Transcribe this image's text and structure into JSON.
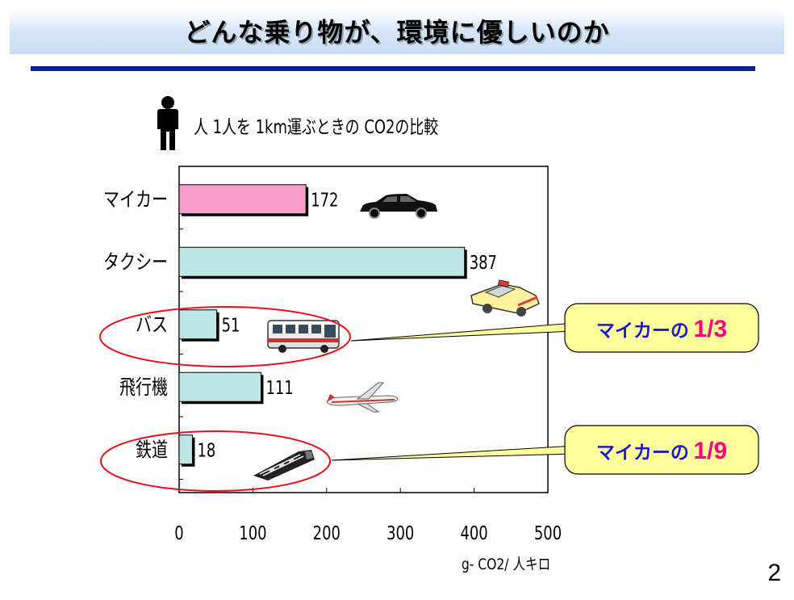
{
  "title": "どんな乗り物が、環境に優しいのか",
  "subtitle": "人 1人を 1km運ぶときの CO2の比較",
  "page_number": "2",
  "chart_data": {
    "type": "bar",
    "orientation": "horizontal",
    "title": "人 1人を 1km運ぶときの CO2の比較",
    "categories": [
      "マイカー",
      "タクシー",
      "バス",
      "飛行機",
      "鉄道"
    ],
    "values": [
      172,
      387,
      51,
      111,
      18
    ],
    "xlabel": "g- CO2/ 人キロ",
    "ylabel": "",
    "xlim": [
      0,
      500
    ],
    "x_ticks": [
      0,
      100,
      200,
      300,
      400,
      500
    ],
    "grid": false,
    "bar_colors": [
      "#f79ccb",
      "#bfe6e6",
      "#bfe6e6",
      "#bfe6e6",
      "#bfe6e6"
    ],
    "vehicle_icons": [
      "car-icon",
      "taxi-icon",
      "bus-icon",
      "airplane-icon",
      "train-icon"
    ],
    "callouts": [
      {
        "prefix": "マイカーの",
        "ratio": "1/3",
        "target": "バス"
      },
      {
        "prefix": "マイカーの",
        "ratio": "1/9",
        "target": "鉄道"
      }
    ],
    "highlight_color": "#e8101c",
    "callout_fill": "#ffff9c",
    "callout_prefix_color": "#1a1acc",
    "callout_ratio_color": "#ff0080"
  }
}
